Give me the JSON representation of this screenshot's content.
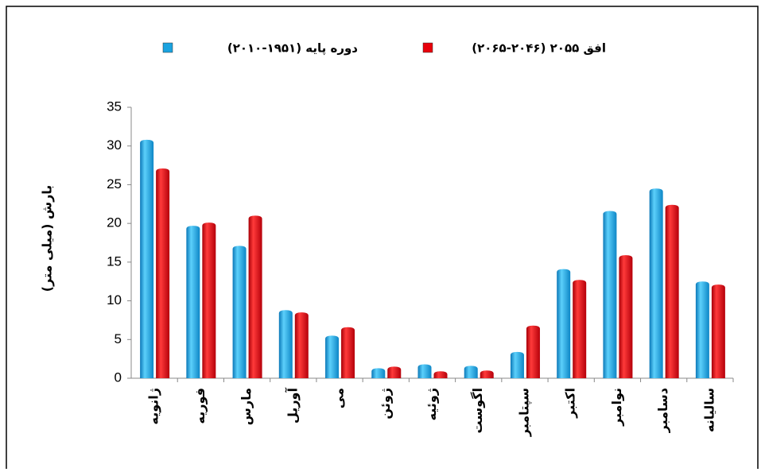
{
  "chart_data": {
    "type": "bar",
    "y_label": "بارش (میلی متر)",
    "categories": [
      "ژانویه",
      "فوریه",
      "مارس",
      "آوریل",
      "می",
      "ژوئن",
      "ژوئیه",
      "اگوست",
      "سپتامبر",
      "اکتبر",
      "نوامبر",
      "دسامبر",
      "سالیانه"
    ],
    "series": [
      {
        "name": "دوره پایه (۱۹۵۱-۲۰۱۰)",
        "color": "#1aa3e0",
        "values": [
          30.8,
          19.7,
          17.1,
          8.8,
          5.5,
          1.3,
          1.8,
          1.6,
          3.4,
          14.1,
          21.6,
          24.5,
          12.5
        ]
      },
      {
        "name": "افق ۲۰۵۵ (۲۰۴۶-۲۰۶۵)",
        "color": "#e8000b",
        "values": [
          27.1,
          20.1,
          21.0,
          8.5,
          6.6,
          1.5,
          0.9,
          1.0,
          6.8,
          12.7,
          15.9,
          22.4,
          12.1
        ]
      }
    ],
    "ylim": [
      0,
      35
    ],
    "yticks": [
      0,
      5,
      10,
      15,
      20,
      25,
      30,
      35
    ],
    "grid": false
  }
}
